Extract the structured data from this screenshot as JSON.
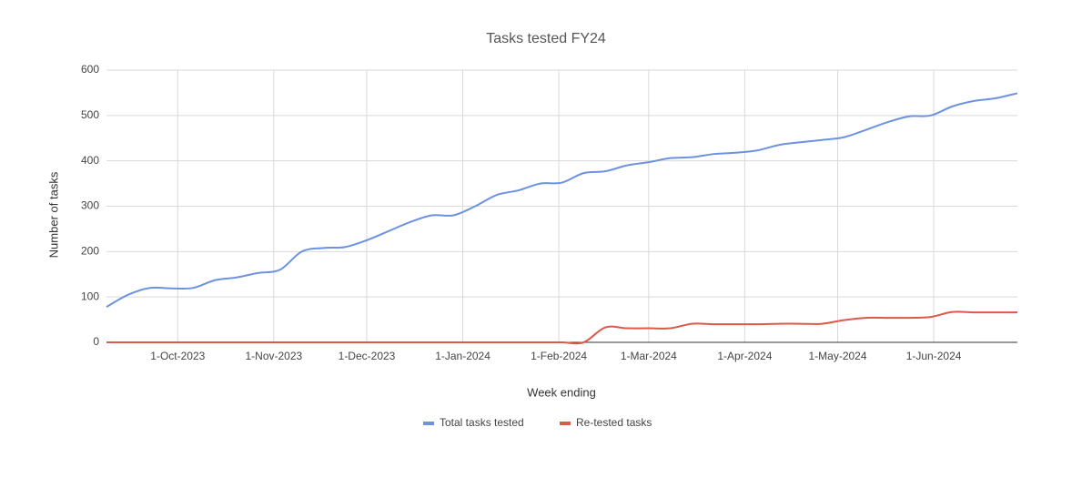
{
  "chart_data": {
    "type": "line",
    "title": "Tasks tested FY24",
    "x_label": "Week ending",
    "y_label": "Number of tasks",
    "x": [
      "2023-09-08",
      "2023-09-15",
      "2023-09-22",
      "2023-09-29",
      "2023-10-06",
      "2023-10-13",
      "2023-10-20",
      "2023-10-27",
      "2023-11-03",
      "2023-11-10",
      "2023-11-17",
      "2023-11-24",
      "2023-12-01",
      "2023-12-08",
      "2023-12-15",
      "2023-12-22",
      "2023-12-29",
      "2024-01-05",
      "2024-01-12",
      "2024-01-19",
      "2024-01-26",
      "2024-02-02",
      "2024-02-09",
      "2024-02-16",
      "2024-02-23",
      "2024-03-01",
      "2024-03-08",
      "2024-03-15",
      "2024-03-22",
      "2024-03-29",
      "2024-04-05",
      "2024-04-12",
      "2024-04-19",
      "2024-04-26",
      "2024-05-03",
      "2024-05-10",
      "2024-05-17",
      "2024-05-24",
      "2024-05-31",
      "2024-06-07",
      "2024-06-14",
      "2024-06-21",
      "2024-06-28"
    ],
    "series": [
      {
        "name": "Total tasks tested",
        "color": "#6d93e0",
        "values": [
          78,
          105,
          120,
          119,
          120,
          137,
          143,
          153,
          160,
          200,
          208,
          210,
          225,
          245,
          265,
          280,
          280,
          300,
          325,
          335,
          350,
          352,
          373,
          377,
          390,
          397,
          406,
          408,
          415,
          418,
          423,
          435,
          441,
          446,
          452,
          468,
          485,
          498,
          500,
          520,
          532,
          538,
          549
        ]
      },
      {
        "name": "Re-tested tasks",
        "color": "#dc5a4a",
        "values": [
          0,
          0,
          0,
          0,
          0,
          0,
          0,
          0,
          0,
          0,
          0,
          0,
          0,
          0,
          0,
          0,
          0,
          0,
          0,
          0,
          0,
          0,
          0,
          33,
          31,
          31,
          31,
          41,
          40,
          40,
          40,
          41,
          41,
          41,
          49,
          54,
          54,
          54,
          56,
          67,
          66,
          66,
          66
        ]
      }
    ],
    "xlim": [
      "2023-09-08",
      "2024-06-28"
    ],
    "xticks": [
      {
        "value": "2023-10-01",
        "label": "1-Oct-2023"
      },
      {
        "value": "2023-11-01",
        "label": "1-Nov-2023"
      },
      {
        "value": "2023-12-01",
        "label": "1-Dec-2023"
      },
      {
        "value": "2024-01-01",
        "label": "1-Jan-2024"
      },
      {
        "value": "2024-02-01",
        "label": "1-Feb-2024"
      },
      {
        "value": "2024-03-01",
        "label": "1-Mar-2024"
      },
      {
        "value": "2024-04-01",
        "label": "1-Apr-2024"
      },
      {
        "value": "2024-05-01",
        "label": "1-May-2024"
      },
      {
        "value": "2024-06-01",
        "label": "1-Jun-2024"
      }
    ],
    "ylim": [
      0,
      600
    ],
    "yticks": [
      0,
      100,
      200,
      300,
      400,
      500,
      600
    ],
    "grid": true,
    "legend": "bottom"
  }
}
